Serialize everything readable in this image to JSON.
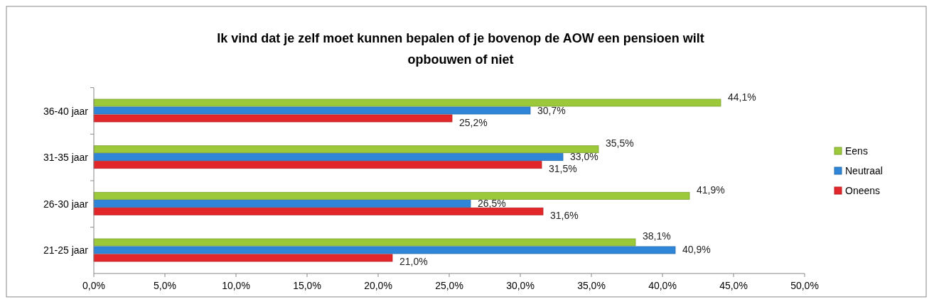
{
  "chart_data": {
    "type": "bar",
    "orientation": "horizontal",
    "title": "Ik vind dat je zelf moet kunnen bepalen of je bovenop de AOW een pensioen wilt opbouwen of niet",
    "categories": [
      "36-40 jaar",
      "31-35 jaar",
      "26-30 jaar",
      "21-25 jaar"
    ],
    "series": [
      {
        "name": "Eens",
        "color": "#9bc93a",
        "values": [
          44.1,
          35.5,
          41.9,
          38.1
        ],
        "value_labels": [
          "44,1%",
          "35,5%",
          "41,9%",
          "38,1%"
        ]
      },
      {
        "name": "Neutraal",
        "color": "#2f86d8",
        "values": [
          30.7,
          33.0,
          26.5,
          40.9
        ],
        "value_labels": [
          "30,7%",
          "33,0%",
          "26,5%",
          "40,9%"
        ]
      },
      {
        "name": "Oneens",
        "color": "#e3262a",
        "values": [
          25.2,
          31.5,
          31.6,
          21.0
        ],
        "value_labels": [
          "25,2%",
          "31,5%",
          "31,6%",
          "21,0%"
        ]
      }
    ],
    "xlim": [
      0,
      50
    ],
    "xticks": [
      {
        "value": 0,
        "label": "0,0%"
      },
      {
        "value": 5,
        "label": "5,0%"
      },
      {
        "value": 10,
        "label": "10,0%"
      },
      {
        "value": 15,
        "label": "15,0%"
      },
      {
        "value": 20,
        "label": "20,0%"
      },
      {
        "value": 25,
        "label": "25,0%"
      },
      {
        "value": 30,
        "label": "30,0%"
      },
      {
        "value": 35,
        "label": "35,0%"
      },
      {
        "value": 40,
        "label": "40,0%"
      },
      {
        "value": 45,
        "label": "45,0%"
      },
      {
        "value": 50,
        "label": "50,0%"
      }
    ],
    "grid": false,
    "legend": "right"
  }
}
